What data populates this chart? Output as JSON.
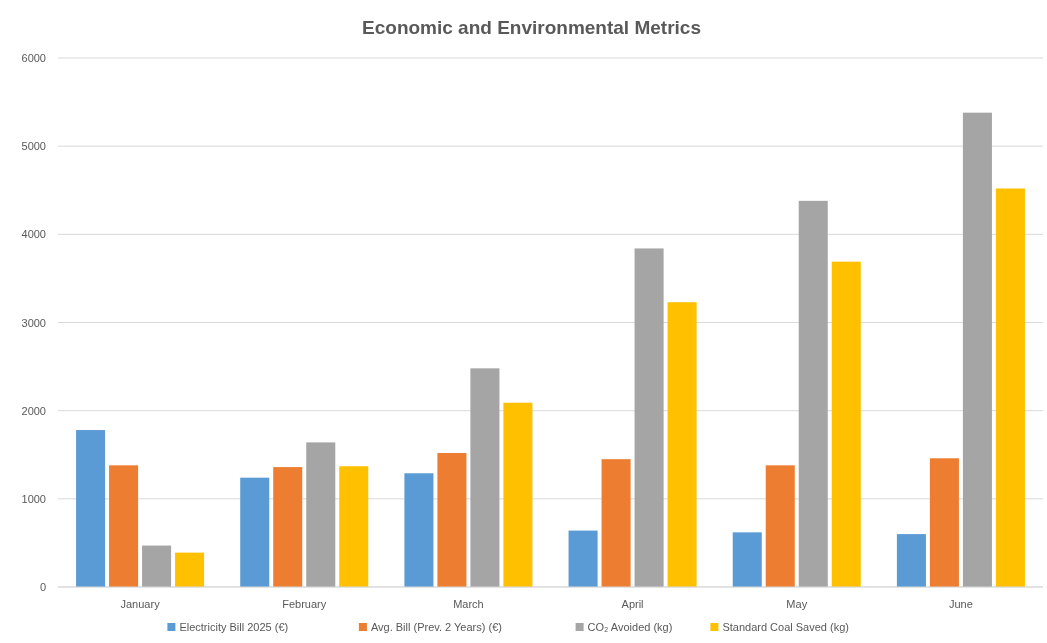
{
  "chart_data": {
    "type": "bar",
    "title": "Economic and Environmental Metrics",
    "categories": [
      "January",
      "February",
      "March",
      "April",
      "May",
      "June"
    ],
    "series": [
      {
        "name": "Electricity Bill 2025 (€)",
        "color": "#5b9bd5",
        "values": [
          1780,
          1240,
          1290,
          640,
          620,
          600
        ]
      },
      {
        "name": "Avg. Bill (Prev. 2 Years) (€)",
        "color": "#ed7d31",
        "values": [
          1380,
          1360,
          1520,
          1450,
          1380,
          1460
        ]
      },
      {
        "name": "CO₂ Avoided (kg)",
        "color": "#a5a5a5",
        "values": [
          470,
          1640,
          2480,
          3840,
          4380,
          5380
        ]
      },
      {
        "name": "Standard Coal Saved (kg)",
        "color": "#ffc000",
        "values": [
          390,
          1370,
          2090,
          3230,
          3690,
          4520
        ]
      }
    ],
    "ylim": [
      0,
      6000
    ],
    "yticks": [
      0,
      1000,
      2000,
      3000,
      4000,
      5000,
      6000
    ],
    "grid": "y",
    "legend": "bottom"
  }
}
